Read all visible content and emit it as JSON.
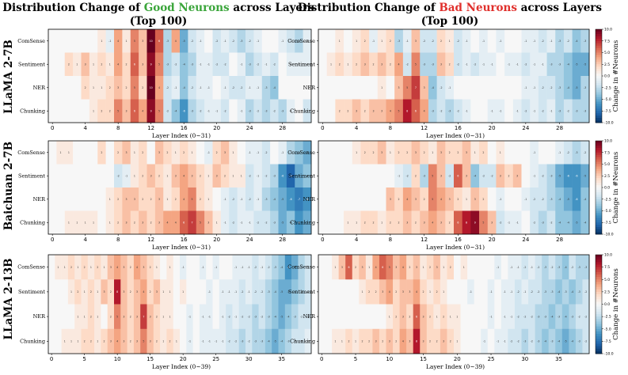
{
  "titles": [
    {
      "pre": "Distribution Change of ",
      "highlight": "Good Neurons",
      "post": " across Layers",
      "line2": "(Top 100)",
      "highlight_color": "#3aa53a"
    },
    {
      "pre": "Distribution Change of ",
      "highlight": "Bad Neurons",
      "post": " across Layers",
      "line2": "(Top 100)",
      "highlight_color": "#e0302c"
    }
  ],
  "row_labels": [
    "LLaMA 2-7B",
    "Baichuan 2-7B",
    "LLaMA 2-13B"
  ],
  "tasks": [
    "ComSense",
    "Sentiment",
    "NER",
    "Chunking"
  ],
  "colorbar_label": "Change in #Neurons",
  "colorbar_ticks": [
    "10.0",
    "7.5",
    "5.0",
    "2.5",
    "0.0",
    "-2.5",
    "-5.0",
    "-7.5",
    "-10.0"
  ],
  "colormap": [
    "#053061",
    "#2166ac",
    "#4393c3",
    "#92c5de",
    "#d1e5f0",
    "#f7f7f7",
    "#fddbc7",
    "#f4a582",
    "#d6604d",
    "#b2182b",
    "#67001f"
  ],
  "chart_data": [
    {
      "type": "heatmap",
      "model": "LLaMA 2-7B",
      "neurons": "Good",
      "title": "Distribution Change of Good Neurons across Layers (Top 100)",
      "xlabel": "Layer Index (0~31)",
      "n_layers": 32,
      "xticks": [
        0,
        4,
        8,
        12,
        16,
        20,
        24,
        28
      ],
      "tasks": [
        "ComSense",
        "Sentiment",
        "NER",
        "Chunking"
      ],
      "values": [
        [
          0,
          0,
          0,
          0,
          0,
          0,
          1,
          -1,
          4,
          1,
          5,
          3,
          10,
          6,
          -3,
          4,
          -5,
          -2,
          -1,
          0,
          -2,
          -1,
          -2,
          -3,
          -2,
          -1,
          0,
          0,
          -1,
          -2,
          -3,
          -1
        ],
        [
          0,
          0,
          2,
          1,
          3,
          1,
          2,
          1,
          4,
          2,
          6,
          3,
          9,
          5,
          -3,
          -2,
          -4,
          -3,
          -1,
          -1,
          -2,
          -2,
          0,
          -1,
          -3,
          -2,
          -1,
          -2,
          0,
          -1,
          -1,
          -1
        ],
        [
          0,
          0,
          0,
          0,
          2,
          1,
          1,
          2,
          3,
          2,
          5,
          2,
          10,
          4,
          -2,
          -1,
          -4,
          -2,
          -1,
          -1,
          0,
          -1,
          -2,
          -2,
          -1,
          -1,
          -3,
          -4,
          0,
          0,
          0,
          0
        ],
        [
          0,
          0,
          0,
          0,
          0,
          1,
          2,
          2,
          5,
          3,
          6,
          4,
          9,
          5,
          -2,
          -4,
          -6,
          -3,
          -2,
          -1,
          -1,
          -2,
          0,
          -1,
          -3,
          -2,
          -3,
          -2,
          -3,
          -1,
          0,
          -2
        ]
      ]
    },
    {
      "type": "heatmap",
      "model": "LLaMA 2-7B",
      "neurons": "Bad",
      "title": "Distribution Change of Bad Neurons across Layers (Top 100)",
      "xlabel": "Layer Index (0~31)",
      "n_layers": 32,
      "xticks": [
        0,
        4,
        8,
        12,
        16,
        20,
        24,
        28
      ],
      "tasks": [
        "ComSense",
        "Sentiment",
        "NER",
        "Chunking"
      ],
      "values": [
        [
          0,
          0,
          1,
          0,
          1,
          2,
          -1,
          1,
          2,
          -3,
          -1,
          3,
          -2,
          -2,
          2,
          1,
          -2,
          -1,
          0,
          -1,
          0,
          -1,
          0,
          0,
          -1,
          -1,
          -2,
          -1,
          -3,
          -2,
          -4,
          -3
        ],
        [
          0,
          1,
          2,
          1,
          2,
          3,
          2,
          3,
          2,
          4,
          -2,
          5,
          -3,
          -3,
          3,
          2,
          -2,
          -1,
          -2,
          -1,
          -1,
          0,
          -1,
          -1,
          -2,
          -1,
          -1,
          -3,
          -3,
          -4,
          -5,
          -5
        ],
        [
          0,
          0,
          0,
          0,
          0,
          0,
          0,
          1,
          0,
          3,
          5,
          7,
          3,
          -4,
          -2,
          -1,
          0,
          0,
          0,
          0,
          0,
          0,
          0,
          0,
          -1,
          -1,
          -2,
          -2,
          -3,
          -4,
          -5,
          -3
        ],
        [
          0,
          0,
          2,
          2,
          3,
          2,
          3,
          3,
          4,
          5,
          8,
          6,
          4,
          -3,
          -2,
          -3,
          -2,
          -1,
          0,
          0,
          -1,
          -1,
          0,
          -1,
          -2,
          -1,
          -2,
          -1,
          -3,
          -2,
          -3,
          -3
        ]
      ]
    },
    {
      "type": "heatmap",
      "model": "Baichuan 2-7B",
      "neurons": "Good",
      "title": "Distribution Change of Good Neurons across Layers (Top 100)",
      "xlabel": "Layer Index (0~31)",
      "n_layers": 32,
      "xticks": [
        0,
        4,
        8,
        12,
        16,
        20,
        24,
        28
      ],
      "tasks": [
        "ComSense",
        "Sentiment",
        "NER",
        "Chunking"
      ],
      "values": [
        [
          0,
          1,
          1,
          0,
          0,
          0,
          2,
          0,
          2,
          3,
          1,
          2,
          0,
          3,
          2,
          1,
          2,
          1,
          0,
          -1,
          2,
          3,
          1,
          0,
          -1,
          -1,
          -2,
          0,
          -1,
          -3,
          -4,
          -5
        ],
        [
          0,
          0,
          0,
          0,
          0,
          0,
          0,
          0,
          -2,
          -1,
          1,
          2,
          3,
          2,
          1,
          3,
          4,
          3,
          2,
          1,
          3,
          2,
          1,
          1,
          -2,
          -1,
          -2,
          -3,
          -6,
          -8,
          -5,
          -4
        ],
        [
          0,
          0,
          0,
          0,
          0,
          0,
          0,
          1,
          2,
          3,
          3,
          2,
          2,
          3,
          1,
          2,
          4,
          5,
          2,
          1,
          0,
          -1,
          -2,
          -1,
          -2,
          -1,
          -3,
          -4,
          -5,
          -6,
          -7,
          -6
        ],
        [
          0,
          0,
          1,
          1,
          1,
          1,
          0,
          1,
          2,
          3,
          2,
          3,
          2,
          3,
          4,
          4,
          6,
          7,
          5,
          3,
          1,
          -1,
          -2,
          -1,
          -1,
          -2,
          -2,
          -3,
          -5,
          -4,
          -6,
          -5
        ]
      ]
    },
    {
      "type": "heatmap",
      "model": "Baichuan 2-7B",
      "neurons": "Bad",
      "title": "Distribution Change of Bad Neurons across Layers (Top 100)",
      "xlabel": "Layer Index (0~31)",
      "n_layers": 32,
      "xticks": [
        0,
        4,
        8,
        12,
        16,
        20,
        24,
        28
      ],
      "tasks": [
        "ComSense",
        "Sentiment",
        "NER",
        "Chunking"
      ],
      "values": [
        [
          0,
          0,
          0,
          0,
          1,
          2,
          2,
          3,
          1,
          2,
          2,
          3,
          2,
          1,
          3,
          2,
          2,
          3,
          1,
          2,
          0,
          1,
          0,
          0,
          0,
          -1,
          0,
          0,
          -1,
          -2,
          -3,
          -2
        ],
        [
          0,
          0,
          0,
          0,
          0,
          0,
          0,
          0,
          0,
          -1,
          -2,
          2,
          -3,
          5,
          3,
          -2,
          6,
          3,
          -4,
          -2,
          -2,
          3,
          2,
          3,
          0,
          -1,
          -2,
          -3,
          -5,
          -6,
          -6,
          -5
        ],
        [
          0,
          0,
          0,
          0,
          0,
          0,
          0,
          0,
          3,
          2,
          4,
          3,
          2,
          5,
          4,
          3,
          2,
          1,
          3,
          2,
          0,
          -1,
          0,
          0,
          -1,
          -2,
          -2,
          -3,
          -4,
          -5,
          -6,
          -4
        ],
        [
          0,
          0,
          0,
          1,
          1,
          2,
          2,
          1,
          2,
          2,
          3,
          2,
          3,
          4,
          3,
          2,
          6,
          8,
          9,
          5,
          3,
          -2,
          -1,
          -1,
          0,
          -2,
          -3,
          -2,
          -4,
          -4,
          -5,
          -4
        ]
      ]
    },
    {
      "type": "heatmap",
      "model": "LLaMA 2-13B",
      "neurons": "Good",
      "title": "Distribution Change of Good Neurons across Layers (Top 100)",
      "xlabel": "Layer Index (0~39)",
      "n_layers": 40,
      "xticks": [
        0,
        5,
        10,
        15,
        20,
        25,
        30,
        35
      ],
      "tasks": [
        "ComSense",
        "Sentiment",
        "NER",
        "Chunking"
      ],
      "values": [
        [
          0,
          1,
          1,
          2,
          1,
          2,
          1,
          2,
          1,
          3,
          4,
          3,
          2,
          4,
          3,
          2,
          1,
          0,
          1,
          0,
          -1,
          0,
          0,
          -1,
          0,
          -1,
          0,
          0,
          -1,
          -1,
          -1,
          -2,
          -1,
          -2,
          -3,
          -4,
          -6,
          -5,
          -3,
          -2
        ],
        [
          0,
          0,
          0,
          1,
          2,
          1,
          2,
          1,
          3,
          2,
          8,
          3,
          2,
          3,
          4,
          2,
          3,
          1,
          1,
          0,
          1,
          0,
          0,
          0,
          -1,
          0,
          -1,
          -1,
          -1,
          -2,
          -1,
          -2,
          -2,
          -3,
          -4,
          -5,
          -5,
          -4,
          -3,
          -2
        ],
        [
          0,
          0,
          0,
          0,
          1,
          1,
          2,
          1,
          0,
          2,
          5,
          3,
          2,
          3,
          7,
          3,
          2,
          1,
          1,
          0,
          0,
          -1,
          0,
          -1,
          -1,
          0,
          -1,
          -2,
          -1,
          -2,
          -2,
          -3,
          -2,
          -3,
          -4,
          -5,
          -4,
          -3,
          -2,
          -2
        ],
        [
          0,
          0,
          1,
          1,
          1,
          2,
          2,
          1,
          2,
          3,
          4,
          3,
          2,
          3,
          5,
          3,
          2,
          1,
          2,
          1,
          0,
          -1,
          0,
          -1,
          -1,
          -1,
          -1,
          -2,
          -2,
          -3,
          -2,
          -3,
          -3,
          -4,
          -5,
          -4,
          -3,
          -2,
          -2,
          -1
        ]
      ]
    },
    {
      "type": "heatmap",
      "model": "LLaMA 2-13B",
      "neurons": "Bad",
      "title": "Distribution Change of Bad Neurons across Layers (Top 100)",
      "xlabel": "Layer Index (0~39)",
      "n_layers": 40,
      "xticks": [
        0,
        5,
        10,
        15,
        20,
        25,
        30,
        35
      ],
      "tasks": [
        "ComSense",
        "Sentiment",
        "NER",
        "Chunking"
      ],
      "values": [
        [
          0,
          0,
          1,
          3,
          6,
          2,
          3,
          1,
          4,
          6,
          5,
          3,
          4,
          2,
          3,
          1,
          2,
          3,
          1,
          2,
          0,
          1,
          0,
          0,
          0,
          0,
          -1,
          0,
          -1,
          -1,
          -2,
          -1,
          -2,
          -3,
          -2,
          -3,
          -4,
          -2,
          -3,
          -3
        ],
        [
          0,
          0,
          0,
          0,
          0,
          0,
          1,
          2,
          2,
          3,
          4,
          2,
          3,
          3,
          4,
          2,
          1,
          2,
          1,
          0,
          0,
          0,
          -1,
          0,
          0,
          -1,
          0,
          -1,
          -1,
          -2,
          -1,
          -2,
          -2,
          -3,
          -3,
          -4,
          -3,
          -4,
          -3,
          -2
        ],
        [
          0,
          0,
          0,
          0,
          0,
          0,
          0,
          0,
          0,
          0,
          1,
          2,
          3,
          2,
          6,
          3,
          2,
          1,
          2,
          1,
          1,
          0,
          0,
          0,
          0,
          -1,
          0,
          -1,
          -1,
          -2,
          -2,
          -2,
          -3,
          -3,
          -4,
          -3,
          -4,
          -3,
          -2,
          -2
        ],
        [
          0,
          0,
          1,
          1,
          2,
          1,
          2,
          2,
          3,
          2,
          3,
          2,
          4,
          3,
          8,
          3,
          2,
          2,
          3,
          2,
          1,
          0,
          0,
          0,
          -1,
          0,
          -1,
          -1,
          -2,
          -2,
          -3,
          -2,
          -3,
          -4,
          -3,
          -4,
          -5,
          -4,
          -3,
          -2
        ]
      ]
    }
  ]
}
